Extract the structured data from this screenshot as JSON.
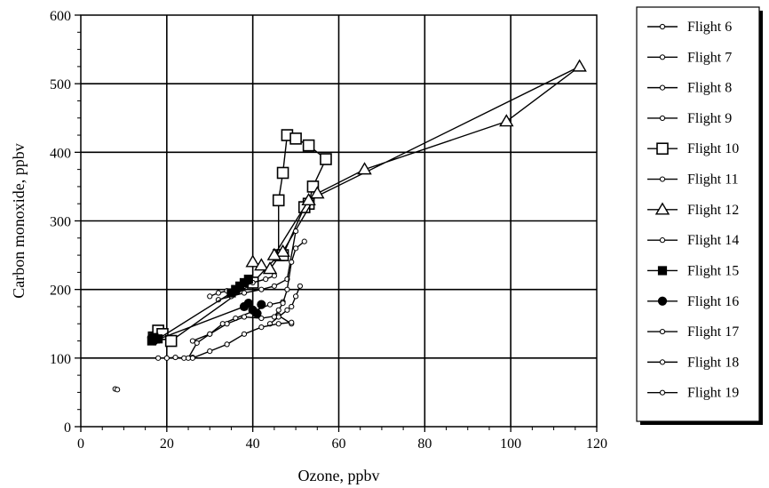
{
  "chart_data": {
    "type": "scatter",
    "title": "",
    "xlabel": "Ozone, ppbv",
    "ylabel": "Carbon monoxide, ppbv",
    "xlim": [
      0,
      120
    ],
    "ylim": [
      0,
      600
    ],
    "xticks": [
      0,
      20,
      40,
      60,
      80,
      100,
      120
    ],
    "yticks": [
      0,
      100,
      200,
      300,
      400,
      500,
      600
    ],
    "grid": true,
    "legend_position": "right",
    "series": [
      {
        "name": "Flight 6",
        "marker": "circle-small",
        "filled": false,
        "x": [
          8,
          8.5
        ],
        "y": [
          55,
          54
        ]
      },
      {
        "name": "Flight 7",
        "marker": "circle-small",
        "filled": false,
        "x": [
          18,
          20,
          22,
          24,
          26
        ],
        "y": [
          100,
          100,
          101,
          100,
          101
        ]
      },
      {
        "name": "Flight 8",
        "marker": "circle-small",
        "filled": false,
        "x": [
          25,
          27,
          30,
          33,
          36,
          40,
          44,
          47
        ],
        "y": [
          100,
          122,
          135,
          150,
          158,
          168,
          178,
          182
        ]
      },
      {
        "name": "Flight 9",
        "marker": "circle-small",
        "filled": false,
        "x": [
          26,
          30,
          34,
          38,
          42,
          46,
          49
        ],
        "y": [
          125,
          135,
          150,
          160,
          158,
          162,
          150
        ]
      },
      {
        "name": "Flight 10",
        "marker": "square",
        "filled": false,
        "x": [
          17,
          18,
          19,
          21,
          40,
          46,
          46,
          47,
          48,
          50,
          53,
          57,
          54,
          53,
          52,
          47
        ],
        "y": [
          130,
          140,
          135,
          125,
          210,
          250,
          330,
          370,
          425,
          420,
          410,
          390,
          350,
          325,
          320,
          250
        ]
      },
      {
        "name": "Flight 11",
        "marker": "circle-small",
        "filled": false,
        "x": [
          30,
          32,
          34,
          36,
          38,
          40,
          43,
          45
        ],
        "y": [
          190,
          195,
          198,
          200,
          205,
          210,
          215,
          220
        ]
      },
      {
        "name": "Flight 12",
        "marker": "triangle",
        "filled": false,
        "x": [
          40,
          42,
          44,
          47,
          55,
          66,
          99,
          116,
          53,
          45
        ],
        "y": [
          240,
          235,
          230,
          255,
          340,
          375,
          445,
          525,
          330,
          250
        ]
      },
      {
        "name": "Flight 14",
        "marker": "circle-small",
        "filled": false,
        "x": [
          32,
          35,
          38,
          42,
          45,
          48,
          50
        ],
        "y": [
          185,
          190,
          195,
          200,
          205,
          215,
          285
        ]
      },
      {
        "name": "Flight 15",
        "marker": "square-small",
        "filled": true,
        "x": [
          16.5,
          17,
          18,
          35,
          36,
          37,
          38,
          39
        ],
        "y": [
          125,
          130,
          128,
          195,
          200,
          205,
          210,
          215
        ]
      },
      {
        "name": "Flight 16",
        "marker": "circle",
        "filled": true,
        "x": [
          16.5,
          17,
          38,
          39,
          40,
          41,
          42
        ],
        "y": [
          130,
          125,
          175,
          180,
          170,
          165,
          178
        ]
      },
      {
        "name": "Flight 17",
        "marker": "circle-small",
        "filled": false,
        "x": [
          44,
          46,
          48,
          49,
          50,
          51
        ],
        "y": [
          150,
          160,
          170,
          175,
          190,
          205
        ]
      },
      {
        "name": "Flight 18",
        "marker": "circle-small",
        "filled": false,
        "x": [
          45,
          46,
          47,
          48,
          49,
          50,
          52
        ],
        "y": [
          160,
          170,
          180,
          200,
          240,
          260,
          270
        ]
      },
      {
        "name": "Flight 19",
        "marker": "circle-small",
        "filled": false,
        "x": [
          26,
          30,
          34,
          38,
          42,
          46,
          49
        ],
        "y": [
          100,
          110,
          120,
          135,
          145,
          150,
          152
        ]
      }
    ]
  }
}
